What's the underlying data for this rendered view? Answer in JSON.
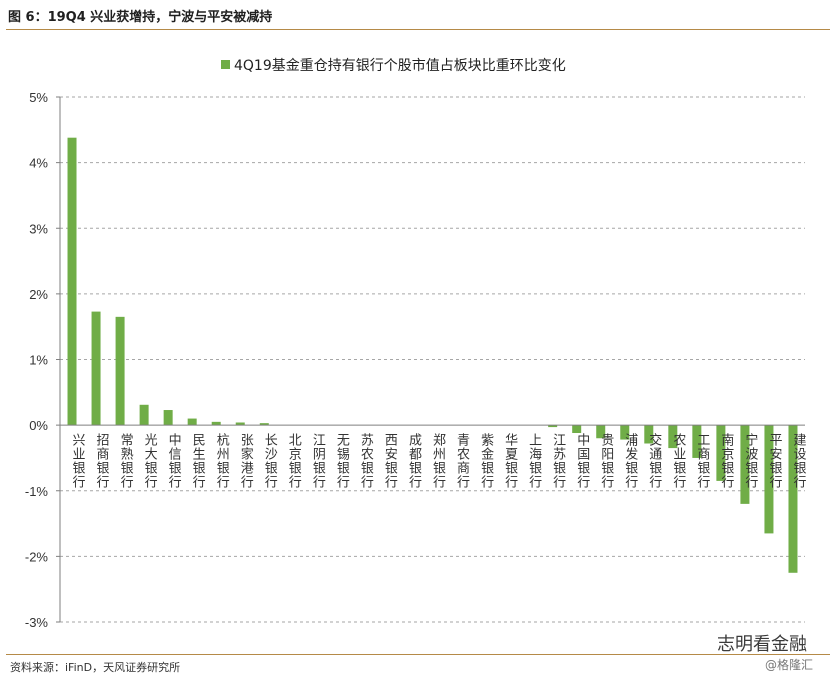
{
  "header": {
    "figure_title": "图 6：19Q4 兴业获增持，宁波与平安被减持"
  },
  "footer": {
    "source": "资料来源：iFinD，天风证券研究所",
    "watermark_name": "志明看金融",
    "watermark_sub": "@格隆汇"
  },
  "colors": {
    "bar": "#70ad47",
    "grid": "#a6a6a6",
    "accent_rule": "#b58a47"
  },
  "chart_data": {
    "type": "bar",
    "title": "",
    "legend": [
      "4Q19基金重仓持有银行个股市值占板块比重环比变化"
    ],
    "legend_position": "top-center",
    "xlabel": "",
    "ylabel": "",
    "ylim": [
      -3,
      5
    ],
    "yticks": [
      "5%",
      "4%",
      "3%",
      "2%",
      "1%",
      "0%",
      "-1%",
      "-2%",
      "-3%"
    ],
    "grid": true,
    "categories": [
      "兴业银行",
      "招商银行",
      "常熟银行",
      "光大银行",
      "中信银行",
      "民生银行",
      "杭州银行",
      "张家港行",
      "长沙银行",
      "北京银行",
      "江阴银行",
      "无锡银行",
      "苏农银行",
      "西安银行",
      "成都银行",
      "郑州银行",
      "青农商行",
      "紫金银行",
      "华夏银行",
      "上海银行",
      "江苏银行",
      "中国银行",
      "贵阳银行",
      "浦发银行",
      "交通银行",
      "农业银行",
      "工商银行",
      "南京银行",
      "宁波银行",
      "平安银行",
      "建设银行"
    ],
    "series": [
      {
        "name": "4Q19基金重仓持有银行个股市值占板块比重环比变化",
        "values": [
          4.38,
          1.73,
          1.65,
          0.31,
          0.23,
          0.1,
          0.05,
          0.04,
          0.03,
          0.0,
          0.0,
          0.0,
          0.0,
          0.0,
          0.0,
          0.0,
          0.0,
          0.0,
          0.0,
          0.0,
          -0.03,
          -0.12,
          -0.2,
          -0.22,
          -0.28,
          -0.35,
          -0.5,
          -0.85,
          -1.2,
          -1.65,
          -2.25
        ]
      }
    ]
  }
}
